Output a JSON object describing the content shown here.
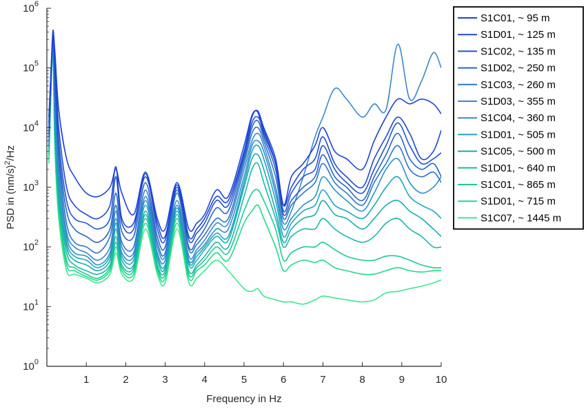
{
  "chart_data": {
    "type": "line",
    "xlabel": "Frequency in Hz",
    "ylabel_parts": {
      "pre": "PSD in (nm/s)",
      "sup": "2",
      "post": "/Hz"
    },
    "xlim": [
      0,
      10
    ],
    "ylim": [
      1,
      1000000
    ],
    "yscale": "log",
    "x_ticks": [
      1,
      2,
      3,
      4,
      5,
      6,
      7,
      8,
      9,
      10
    ],
    "x_tick_labels": [
      "1",
      "2",
      "3",
      "4",
      "5",
      "6",
      "7",
      "8",
      "9",
      "10"
    ],
    "y_ticks": [
      1,
      10,
      100,
      1000,
      10000,
      100000,
      1000000
    ],
    "y_tick_base": "10",
    "y_tick_exps": [
      "0",
      "1",
      "2",
      "3",
      "4",
      "5",
      "6"
    ],
    "grid": false,
    "legend_position": "top-right outside",
    "x": [
      0.05,
      0.15,
      0.2,
      0.3,
      0.5,
      0.7,
      1.0,
      1.3,
      1.6,
      1.75,
      1.9,
      2.2,
      2.5,
      2.8,
      3.0,
      3.3,
      3.6,
      3.8,
      4.0,
      4.3,
      4.6,
      5.0,
      5.2,
      5.35,
      5.5,
      5.8,
      6.0,
      6.2,
      6.5,
      6.8,
      7.0,
      7.3,
      7.6,
      8.0,
      8.3,
      8.6,
      8.9,
      9.2,
      9.5,
      9.8,
      10.0
    ],
    "series": [
      {
        "name": "S1C01, ~ 95 m",
        "color": "#1f3fd8",
        "values": [
          15000,
          300000,
          200000,
          20000,
          3000,
          1500,
          800,
          700,
          1000,
          2000,
          800,
          350,
          1800,
          300,
          200,
          1200,
          200,
          250,
          350,
          900,
          700,
          5000,
          16000,
          18000,
          8000,
          2500,
          500,
          1500,
          2500,
          5000,
          10000,
          4000,
          3000,
          2000,
          6000,
          15000,
          30000,
          25000,
          30000,
          25000,
          17000
        ]
      },
      {
        "name": "S1D01, ~ 125 m",
        "color": "#1e47d3",
        "values": [
          12000,
          350000,
          150000,
          10000,
          1000,
          500,
          350,
          300,
          500,
          2200,
          300,
          250,
          1500,
          250,
          150,
          1100,
          150,
          200,
          300,
          700,
          600,
          4000,
          15000,
          19000,
          10000,
          3000,
          500,
          1000,
          2000,
          3000,
          7000,
          2500,
          1500,
          1000,
          3000,
          7000,
          15000,
          8000,
          3000,
          4000,
          9000
        ]
      },
      {
        "name": "S1C02, ~ 135 m",
        "color": "#2052cf",
        "values": [
          10000,
          400000,
          100000,
          6000,
          600,
          300,
          250,
          200,
          300,
          1500,
          250,
          200,
          1700,
          200,
          130,
          1000,
          130,
          170,
          250,
          600,
          500,
          3500,
          12000,
          15000,
          9000,
          2500,
          400,
          800,
          1500,
          2000,
          5000,
          2000,
          1200,
          800,
          2000,
          5000,
          12000,
          5000,
          2500,
          3000,
          3800
        ]
      },
      {
        "name": "S1D02, ~ 250 m",
        "color": "#2a62c8",
        "values": [
          8000,
          350000,
          60000,
          4000,
          400,
          200,
          150,
          120,
          200,
          800,
          180,
          150,
          1200,
          150,
          100,
          900,
          100,
          130,
          200,
          450,
          400,
          3000,
          10000,
          13000,
          7000,
          2000,
          350,
          600,
          1000,
          1500,
          3500,
          1500,
          1000,
          600,
          1500,
          3500,
          8000,
          3000,
          2000,
          2500,
          1500
        ]
      },
      {
        "name": "S1C03, ~ 260 m",
        "color": "#2b74c8",
        "values": [
          7000,
          300000,
          40000,
          3000,
          250,
          120,
          100,
          80,
          150,
          500,
          120,
          100,
          900,
          120,
          80,
          800,
          90,
          110,
          160,
          300,
          300,
          2500,
          8000,
          10000,
          6000,
          1500,
          300,
          500,
          800,
          1200,
          2500,
          1200,
          800,
          500,
          1200,
          2500,
          5000,
          2000,
          1500,
          1800,
          1200
        ]
      },
      {
        "name": "S1D03, ~ 355 m",
        "color": "#3a86cd",
        "values": [
          6000,
          280000,
          30000,
          2000,
          180,
          100,
          80,
          60,
          100,
          400,
          100,
          80,
          700,
          100,
          70,
          600,
          70,
          90,
          130,
          250,
          250,
          2000,
          6000,
          8000,
          5000,
          1000,
          250,
          400,
          1500,
          7000,
          15000,
          45000,
          30000,
          15000,
          25000,
          20000,
          250000,
          30000,
          60000,
          180000,
          100000
        ]
      },
      {
        "name": "S1C04, ~ 360 m",
        "color": "#2a90c6",
        "values": [
          5000,
          250000,
          20000,
          1500,
          150,
          80,
          70,
          50,
          80,
          300,
          80,
          70,
          600,
          80,
          60,
          500,
          60,
          80,
          110,
          200,
          200,
          1500,
          5000,
          6000,
          4000,
          800,
          200,
          300,
          500,
          700,
          1500,
          900,
          600,
          400,
          800,
          2000,
          3000,
          1200,
          800,
          1000,
          1500
        ]
      },
      {
        "name": "S1D01, ~ 505 m",
        "color": "#1aa3bf",
        "values": [
          5000,
          240000,
          15000,
          1000,
          120,
          70,
          60,
          45,
          70,
          250,
          70,
          60,
          500,
          70,
          50,
          450,
          55,
          70,
          100,
          170,
          150,
          1200,
          4000,
          5000,
          3000,
          600,
          150,
          250,
          400,
          500,
          900,
          500,
          400,
          300,
          500,
          1000,
          1500,
          700,
          500,
          400,
          300
        ]
      },
      {
        "name": "S1C05, ~ 500 m",
        "color": "#18acb0",
        "values": [
          4500,
          230000,
          12000,
          800,
          100,
          60,
          50,
          40,
          60,
          200,
          60,
          50,
          400,
          60,
          45,
          400,
          50,
          60,
          90,
          150,
          130,
          1000,
          3000,
          3500,
          2000,
          400,
          120,
          200,
          300,
          350,
          600,
          350,
          300,
          200,
          300,
          500,
          600,
          400,
          300,
          200,
          150
        ]
      },
      {
        "name": "S1D01, ~ 640 m",
        "color": "#1ab8a4",
        "values": [
          4000,
          220000,
          10000,
          600,
          80,
          50,
          40,
          35,
          50,
          150,
          50,
          45,
          350,
          50,
          40,
          350,
          40,
          50,
          70,
          120,
          100,
          700,
          2000,
          2500,
          1200,
          300,
          100,
          150,
          200,
          200,
          300,
          200,
          150,
          120,
          150,
          250,
          300,
          200,
          150,
          100,
          100
        ]
      },
      {
        "name": "S1C01, ~ 865 m",
        "color": "#1cc994",
        "values": [
          3500,
          210000,
          8000,
          500,
          60,
          45,
          35,
          30,
          45,
          120,
          45,
          40,
          300,
          45,
          35,
          300,
          35,
          45,
          60,
          100,
          80,
          400,
          800,
          900,
          600,
          200,
          60,
          80,
          100,
          100,
          120,
          90,
          70,
          60,
          60,
          70,
          70,
          60,
          50,
          45,
          45
        ]
      },
      {
        "name": "S1D01, ~ 715 m",
        "color": "#22d98a",
        "values": [
          3000,
          200000,
          6000,
          400,
          50,
          40,
          32,
          28,
          40,
          100,
          40,
          35,
          250,
          40,
          30,
          250,
          30,
          40,
          50,
          80,
          60,
          250,
          400,
          500,
          300,
          100,
          40,
          50,
          60,
          55,
          60,
          45,
          40,
          35,
          35,
          40,
          45,
          40,
          38,
          40,
          40
        ]
      },
      {
        "name": "S1C07, ~ 1445 m",
        "color": "#3de88c",
        "values": [
          2500,
          190000,
          5000,
          300,
          40,
          35,
          30,
          25,
          35,
          80,
          35,
          30,
          200,
          35,
          25,
          200,
          25,
          30,
          40,
          60,
          40,
          20,
          18,
          20,
          15,
          13,
          12,
          12,
          11,
          13,
          15,
          14,
          13,
          12,
          13,
          17,
          18,
          20,
          22,
          25,
          28
        ]
      }
    ]
  }
}
